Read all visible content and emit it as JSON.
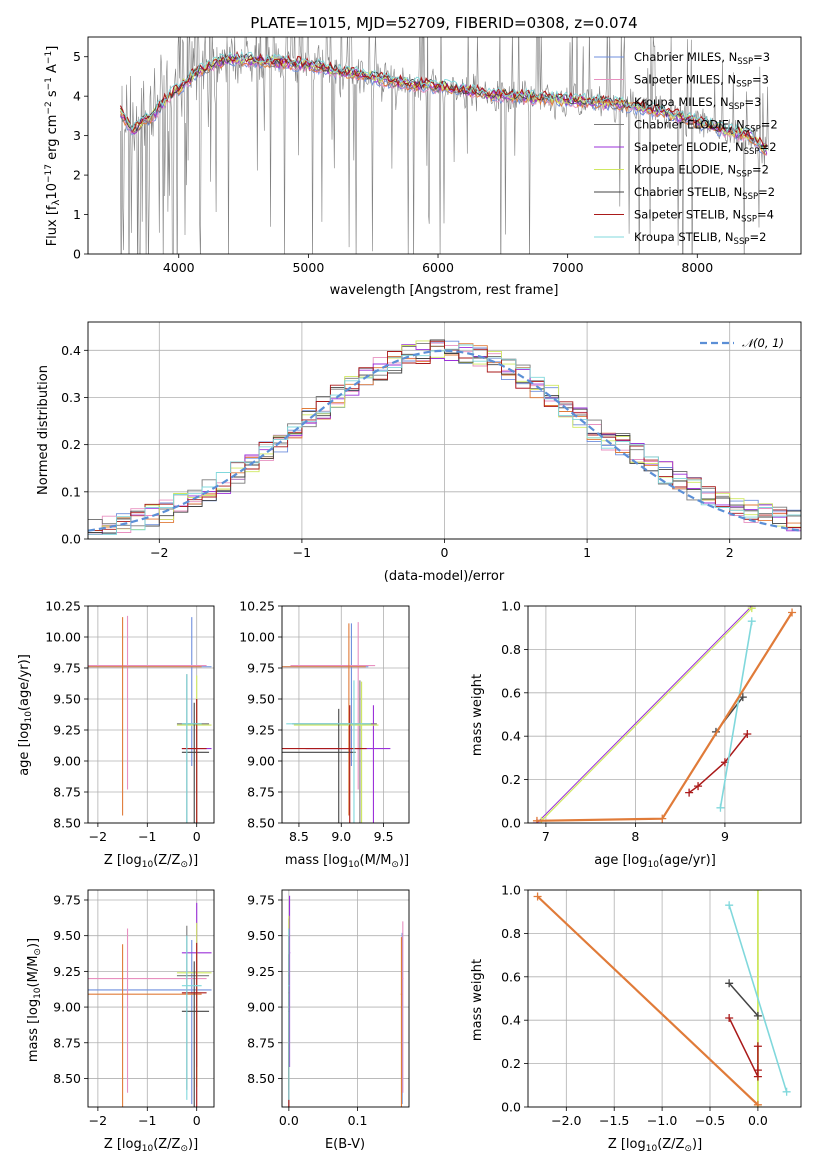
{
  "colors": {
    "chabrier_miles": "#6f8fde",
    "salpeter_miles": "#e890c0",
    "kroupa_miles": "#e07b39",
    "chabrier_elodie": "#7a7a7a",
    "salpeter_elodie": "#9b30d9",
    "kroupa_elodie": "#cfe860",
    "chabrier_stelib": "#444444",
    "salpeter_stelib": "#aa1a1a",
    "kroupa_stelib": "#80d8dc",
    "data": "#808080",
    "normal": "#5b8fd6"
  },
  "chart_data": [
    {
      "id": "spectrum",
      "type": "line",
      "title": "PLATE=1015, MJD=52709, FIBERID=0308, z=0.074",
      "xlabel": "wavelength [Angstrom, rest frame]",
      "ylabel": "Flux [f_λ 10^-17 erg cm^-2 s^-1 A^-1]",
      "xlim": [
        3300,
        8800
      ],
      "ylim": [
        0,
        5.5
      ],
      "xticks": [
        "4000",
        "5000",
        "6000",
        "7000",
        "8000"
      ],
      "yticks": [
        "0",
        "1",
        "2",
        "3",
        "4",
        "5"
      ],
      "legend_position": "top-right",
      "legend": [
        "Chabrier MILES, N_SSP=3",
        "Salpeter MILES, N_SSP=3",
        "Kroupa MILES, N_SSP=3",
        "Chabrier ELODIE, N_SSP=2",
        "Salpeter ELODIE, N_SSP=2",
        "Kroupa ELODIE, N_SSP=2",
        "Chabrier STELIB, N_SSP=2",
        "Salpeter STELIB, N_SSP=4",
        "Kroupa STELIB, N_SSP=2"
      ],
      "model_continuum": {
        "x": [
          3550,
          3650,
          3700,
          3800,
          3900,
          4000,
          4100,
          4200,
          4300,
          4400,
          4600,
          4800,
          5000,
          5200,
          5400,
          5600,
          5800,
          6000,
          6200,
          6400,
          6600,
          6800,
          7000,
          7200,
          7400,
          7600,
          7800,
          8000,
          8200,
          8400,
          8550
        ],
        "y": [
          3.6,
          3.1,
          3.3,
          3.5,
          3.9,
          4.2,
          4.5,
          4.7,
          4.85,
          4.95,
          4.9,
          4.85,
          4.8,
          4.65,
          4.55,
          4.4,
          4.3,
          4.25,
          4.15,
          4.05,
          4.0,
          3.95,
          3.9,
          3.85,
          3.8,
          3.7,
          3.55,
          3.35,
          3.15,
          3.0,
          2.6
        ]
      }
    },
    {
      "id": "residuals",
      "type": "line",
      "xlabel": "(data-model)/error",
      "ylabel": "Normed distribution",
      "xlim": [
        -2.5,
        2.5
      ],
      "ylim": [
        0,
        0.46
      ],
      "xticks": [
        "−2",
        "−1",
        "0",
        "1",
        "2"
      ],
      "yticks": [
        "0.0",
        "0.1",
        "0.2",
        "0.3",
        "0.4"
      ],
      "legend": [
        "𝒩(0, 1)"
      ],
      "legend_position": "top-right"
    },
    {
      "id": "z-age",
      "type": "scatter",
      "xlabel": "Z [log10(Z/Z⊙)]",
      "ylabel": "age  [log10(age/yr)]",
      "xlim": [
        -2.2,
        0.35
      ],
      "ylim": [
        8.5,
        10.25
      ],
      "xticks": [
        "−2",
        "−1",
        "0"
      ],
      "yticks": [
        "8.50",
        "8.75",
        "9.00",
        "9.25",
        "9.50",
        "9.75",
        "10.00",
        "10.25"
      ]
    },
    {
      "id": "mass-age",
      "type": "scatter",
      "xlabel": "mass [log10(M/M⊙)]",
      "xlim": [
        8.3,
        9.8
      ],
      "ylim": [
        8.5,
        10.25
      ],
      "xticks": [
        "8.5",
        "9.0",
        "9.5"
      ],
      "yticks": [
        "8.50",
        "8.75",
        "9.00",
        "9.25",
        "9.50",
        "9.75",
        "10.00",
        "10.25"
      ]
    },
    {
      "id": "age-weight",
      "type": "line",
      "xlabel": "age  [log10(age/yr)]",
      "ylabel": "mass weight",
      "xlim": [
        6.8,
        9.85
      ],
      "ylim": [
        0,
        1.0
      ],
      "xticks": [
        "7",
        "8",
        "9"
      ],
      "yticks": [
        "0.0",
        "0.2",
        "0.4",
        "0.6",
        "0.8",
        "1.0"
      ]
    },
    {
      "id": "z-mass",
      "type": "scatter",
      "xlabel": "Z [log10(Z/Z⊙)]",
      "ylabel": "mass [log10(M/M⊙)]",
      "xlim": [
        -2.2,
        0.35
      ],
      "ylim": [
        8.3,
        9.82
      ],
      "xticks": [
        "−2",
        "−1",
        "0"
      ],
      "yticks": [
        "8.50",
        "8.75",
        "9.00",
        "9.25",
        "9.50",
        "9.75"
      ]
    },
    {
      "id": "ebv-mass",
      "type": "scatter",
      "xlabel": "E(B-V)",
      "xlim": [
        -0.01,
        0.175
      ],
      "ylim": [
        8.3,
        9.82
      ],
      "xticks": [
        "0.0",
        "0.1"
      ],
      "yticks": [
        "8.50",
        "8.75",
        "9.00",
        "9.25",
        "9.50",
        "9.75"
      ]
    },
    {
      "id": "z-weight",
      "type": "line",
      "xlabel": "Z [log10(Z/Z⊙)]",
      "ylabel": "mass weight",
      "xlim": [
        -2.4,
        0.45
      ],
      "ylim": [
        0,
        1.0
      ],
      "xticks": [
        "−2.0",
        "−1.5",
        "−1.0",
        "−0.5",
        "0.0"
      ],
      "yticks": [
        "0.0",
        "0.2",
        "0.4",
        "0.6",
        "0.8",
        "1.0"
      ]
    }
  ]
}
